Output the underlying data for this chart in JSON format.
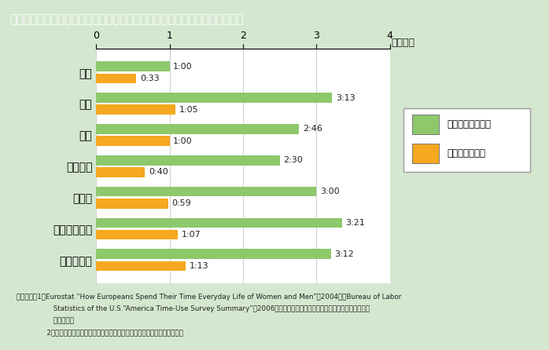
{
  "title": "第１－３－５図　６歳未満児のいる夫の家事・育児関連時間（１日当たり）",
  "title_bg_color": "#8B7355",
  "title_text_color": "#FFFFFF",
  "bg_color": "#D4E8D0",
  "plot_bg_color": "#FFFFFF",
  "countries": [
    "日本",
    "米国",
    "英国",
    "フランス",
    "ドイツ",
    "スウェーデン",
    "ノルウェー"
  ],
  "total_values": [
    1.0,
    3.2167,
    2.7667,
    2.5,
    3.0,
    3.35,
    3.2
  ],
  "child_values": [
    0.55,
    1.0833,
    1.0,
    0.6667,
    0.9833,
    1.1167,
    1.2167
  ],
  "total_labels": [
    "1:00",
    "3:13",
    "2:46",
    "2:30",
    "3:00",
    "3:21",
    "3:12"
  ],
  "child_labels": [
    "0:33",
    "1:05",
    "1:00",
    "0:40",
    "0:59",
    "1:07",
    "1:13"
  ],
  "total_color": "#8DC86A",
  "child_color": "#F5A820",
  "legend_label_total": "家事関連時間全体",
  "legend_label_child": "うち育児の時間",
  "time_unit": "（時間）",
  "xlim": [
    0,
    4
  ],
  "xticks": [
    0,
    1,
    2,
    3,
    4
  ],
  "note_lines": [
    "（備考）　1．Eurostat “How Europeans Spend Their Time Everyday Life of Women and Men”（2004），Bureau of Labor",
    "                 Statistics of the U.S.“America Time-Use Survey Summary”（2006）及び総務省「社会生活基本調査」（平成１８年）",
    "                 より作成。",
    "              2．日本の数値は，「夫婦と子どもの世帯」に限定した夫の時間である。"
  ]
}
